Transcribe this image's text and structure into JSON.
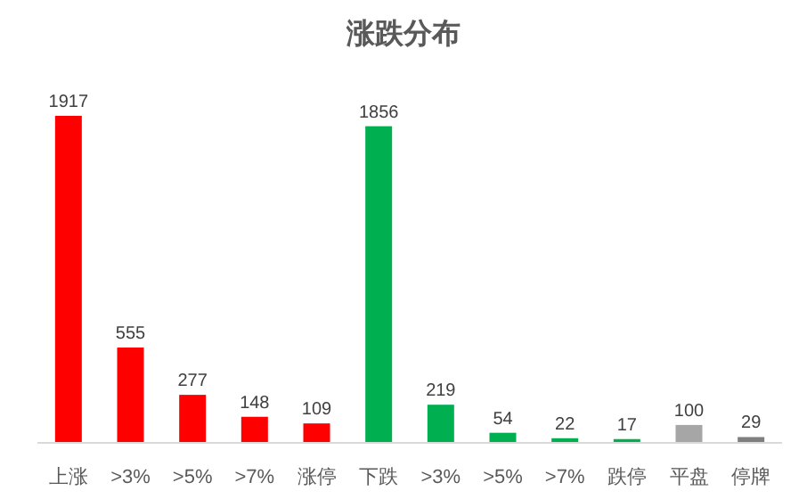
{
  "chart_data": {
    "type": "bar",
    "title": "涨跌分布",
    "categories": [
      "上涨",
      ">3%",
      ">5%",
      ">7%",
      "涨停",
      "下跌",
      ">3%",
      ">5%",
      ">7%",
      "跌停",
      "平盘",
      "停牌"
    ],
    "values": [
      1917,
      555,
      277,
      148,
      109,
      1856,
      219,
      54,
      22,
      17,
      100,
      29
    ],
    "colors": [
      "#ff0000",
      "#ff0000",
      "#ff0000",
      "#ff0000",
      "#ff0000",
      "#00b050",
      "#00b050",
      "#00b050",
      "#00b050",
      "#00b050",
      "#a6a6a6",
      "#7f7f7f"
    ],
    "data_labels": true
  }
}
